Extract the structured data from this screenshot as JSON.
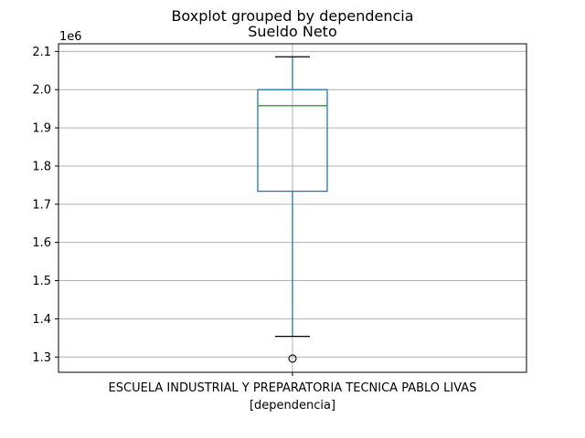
{
  "chart_data": {
    "type": "box",
    "suptitle": "Boxplot grouped by dependencia",
    "title": "Sueldo Neto",
    "xlabel": "[dependencia]",
    "categories": [
      "ESCUELA INDUSTRIAL Y PREPARATORIA TECNICA PABLO LIVAS"
    ],
    "y_offset_label": "1e6",
    "y_scale_factor": 1000000,
    "ylim": [
      1.26,
      2.12
    ],
    "yticks": [
      1.3,
      1.4,
      1.5,
      1.6,
      1.7,
      1.8,
      1.9,
      2.0,
      2.1
    ],
    "ytick_labels": [
      "1.3",
      "1.4",
      "1.5",
      "1.6",
      "1.7",
      "1.8",
      "1.9",
      "2.0",
      "2.1"
    ],
    "boxes": [
      {
        "category": "ESCUELA INDUSTRIAL Y PREPARATORIA TECNICA PABLO LIVAS",
        "whisker_low": 1.354,
        "q1": 1.734,
        "median": 1.958,
        "q3": 2.0,
        "whisker_high": 2.086,
        "outliers": [
          1.296
        ]
      }
    ],
    "grid": true,
    "colors": {
      "box": "#1f77b4",
      "median": "#2ca02c",
      "whisker_cap": "#000000",
      "grid": "#b0b0b0",
      "outlier": "#000000"
    }
  }
}
